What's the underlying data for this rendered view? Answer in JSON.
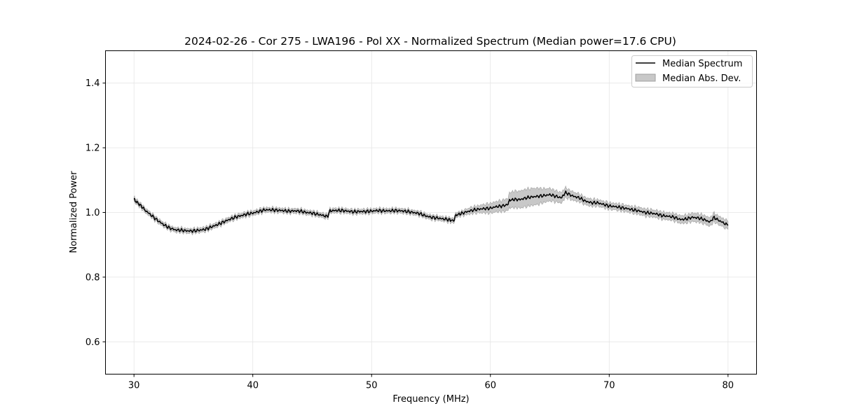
{
  "chart_data": {
    "type": "line",
    "title": "2024-02-26 - Cor 275 - LWA196 - Pol XX - Normalized Spectrum (Median power=17.6 CPU)",
    "xlabel": "Frequency (MHz)",
    "ylabel": "Normalized Power",
    "xlim": [
      27.6,
      82.4
    ],
    "ylim": [
      0.5,
      1.5
    ],
    "xticks": [
      30,
      40,
      50,
      60,
      70,
      80
    ],
    "yticks": [
      0.6,
      0.8,
      1.0,
      1.2,
      1.4
    ],
    "xtick_labels": [
      "30",
      "40",
      "50",
      "60",
      "70",
      "80"
    ],
    "ytick_labels": [
      "0.6",
      "0.8",
      "1.0",
      "1.2",
      "1.4"
    ],
    "grid": true,
    "legend_position": "top-right",
    "legend": {
      "line_label": "Median Spectrum",
      "band_label": "Median Abs. Dev."
    },
    "colors": {
      "line": "#000000",
      "band": "#c8c8c8",
      "band_edge": "#a0a0a0",
      "grid": "#e5e5e5"
    },
    "series": [
      {
        "name": "Median Spectrum",
        "x": [
          30.0,
          30.3,
          30.6,
          31.0,
          31.5,
          32.0,
          32.5,
          33.0,
          33.5,
          34.0,
          34.5,
          35.0,
          35.5,
          36.0,
          36.5,
          37.0,
          37.5,
          38.0,
          38.5,
          39.0,
          39.5,
          40.0,
          40.5,
          41.0,
          41.5,
          42.0,
          42.5,
          43.0,
          43.5,
          44.0,
          44.5,
          45.0,
          45.5,
          46.0,
          46.3,
          46.5,
          47.0,
          47.5,
          48.0,
          48.5,
          49.0,
          49.5,
          50.0,
          50.5,
          51.0,
          51.5,
          52.0,
          52.5,
          53.0,
          53.5,
          54.0,
          54.5,
          55.0,
          55.5,
          56.0,
          56.5,
          56.9,
          57.1,
          57.5,
          58.0,
          58.5,
          59.0,
          59.5,
          60.0,
          60.5,
          61.0,
          61.5,
          61.6,
          62.0,
          62.5,
          63.0,
          63.5,
          64.0,
          64.5,
          65.0,
          65.5,
          66.0,
          66.3,
          66.5,
          67.0,
          67.5,
          68.0,
          68.5,
          69.0,
          69.5,
          70.0,
          70.5,
          71.0,
          71.5,
          72.0,
          72.5,
          73.0,
          73.5,
          74.0,
          74.5,
          75.0,
          75.5,
          76.0,
          76.5,
          77.0,
          77.5,
          78.0,
          78.5,
          78.8,
          79.0,
          79.5,
          80.0
        ],
        "values": [
          1.04,
          1.03,
          1.02,
          1.005,
          0.99,
          0.975,
          0.962,
          0.952,
          0.946,
          0.945,
          0.943,
          0.943,
          0.945,
          0.948,
          0.955,
          0.962,
          0.97,
          0.978,
          0.985,
          0.99,
          0.995,
          0.998,
          1.003,
          1.008,
          1.008,
          1.007,
          1.006,
          1.004,
          1.005,
          1.004,
          1.0,
          0.998,
          0.994,
          0.99,
          0.988,
          1.005,
          1.006,
          1.006,
          1.004,
          1.002,
          1.003,
          1.003,
          1.004,
          1.006,
          1.005,
          1.005,
          1.006,
          1.005,
          1.003,
          1.0,
          0.997,
          0.99,
          0.985,
          0.983,
          0.98,
          0.978,
          0.974,
          0.992,
          0.996,
          1.002,
          1.007,
          1.01,
          1.012,
          1.013,
          1.018,
          1.02,
          1.025,
          1.038,
          1.04,
          1.04,
          1.045,
          1.048,
          1.05,
          1.052,
          1.055,
          1.05,
          1.045,
          1.062,
          1.058,
          1.05,
          1.045,
          1.035,
          1.03,
          1.03,
          1.025,
          1.02,
          1.018,
          1.015,
          1.012,
          1.008,
          1.005,
          1.0,
          0.998,
          0.995,
          0.99,
          0.988,
          0.985,
          0.978,
          0.98,
          0.985,
          0.983,
          0.978,
          0.97,
          0.985,
          0.98,
          0.97,
          0.96
        ]
      }
    ],
    "band_half_width": [
      0.006,
      0.006,
      0.006,
      0.006,
      0.006,
      0.006,
      0.006,
      0.006,
      0.006,
      0.006,
      0.006,
      0.006,
      0.006,
      0.006,
      0.006,
      0.006,
      0.006,
      0.006,
      0.006,
      0.006,
      0.006,
      0.006,
      0.006,
      0.006,
      0.006,
      0.006,
      0.006,
      0.006,
      0.006,
      0.006,
      0.006,
      0.006,
      0.006,
      0.006,
      0.006,
      0.006,
      0.006,
      0.006,
      0.006,
      0.006,
      0.006,
      0.006,
      0.006,
      0.006,
      0.006,
      0.006,
      0.006,
      0.006,
      0.006,
      0.006,
      0.006,
      0.006,
      0.006,
      0.006,
      0.006,
      0.006,
      0.006,
      0.006,
      0.006,
      0.008,
      0.009,
      0.01,
      0.012,
      0.014,
      0.015,
      0.016,
      0.018,
      0.022,
      0.024,
      0.025,
      0.026,
      0.025,
      0.024,
      0.02,
      0.018,
      0.016,
      0.015,
      0.014,
      0.013,
      0.012,
      0.011,
      0.01,
      0.01,
      0.009,
      0.009,
      0.009,
      0.009,
      0.009,
      0.009,
      0.009,
      0.01,
      0.01,
      0.01,
      0.01,
      0.01,
      0.01,
      0.01,
      0.011,
      0.011,
      0.012,
      0.012,
      0.012,
      0.012,
      0.013,
      0.012,
      0.012,
      0.012
    ]
  }
}
